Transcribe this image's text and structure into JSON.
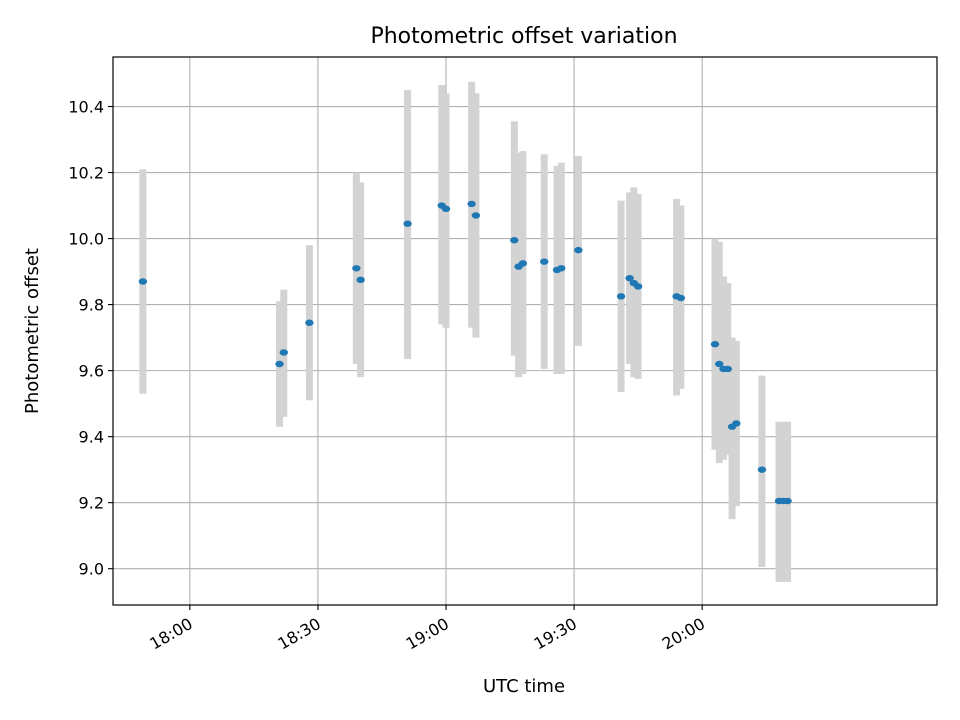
{
  "chart_data": {
    "type": "scatter",
    "title": "Photometric offset variation",
    "xlabel": "UTC time",
    "ylabel": "Photometric offset",
    "x_format": "HH:MM (UTC)",
    "xlim": [
      "17:42",
      "20:55"
    ],
    "ylim": [
      8.89,
      10.55
    ],
    "xticks": [
      "18:00",
      "18:30",
      "19:00",
      "19:30",
      "20:00"
    ],
    "yticks": [
      "9.0",
      "9.2",
      "9.4",
      "9.6",
      "9.8",
      "10.0",
      "10.2",
      "10.4"
    ],
    "grid": true,
    "legend": "none",
    "colors": {
      "points": "#1f77b4",
      "error_bars": "#d3d3d3",
      "grid": "#b0b0b0"
    },
    "series": [
      {
        "name": "",
        "points": [
          {
            "x": "17:49",
            "y": 9.87,
            "low": 9.53,
            "high": 10.21
          },
          {
            "x": "18:21",
            "y": 9.62,
            "low": 9.43,
            "high": 9.81
          },
          {
            "x": "18:22",
            "y": 9.655,
            "low": 9.46,
            "high": 9.845
          },
          {
            "x": "18:28",
            "y": 9.745,
            "low": 9.51,
            "high": 9.98
          },
          {
            "x": "18:39",
            "y": 9.91,
            "low": 9.62,
            "high": 10.2
          },
          {
            "x": "18:40",
            "y": 9.875,
            "low": 9.58,
            "high": 10.17
          },
          {
            "x": "18:51",
            "y": 10.045,
            "low": 9.635,
            "high": 10.45
          },
          {
            "x": "18:59",
            "y": 10.1,
            "low": 9.74,
            "high": 10.465
          },
          {
            "x": "19:00",
            "y": 10.09,
            "low": 9.73,
            "high": 10.44
          },
          {
            "x": "19:06",
            "y": 10.105,
            "low": 9.73,
            "high": 10.475
          },
          {
            "x": "19:07",
            "y": 10.07,
            "low": 9.7,
            "high": 10.44
          },
          {
            "x": "19:16",
            "y": 9.995,
            "low": 9.645,
            "high": 10.355
          },
          {
            "x": "19:17",
            "y": 9.915,
            "low": 9.58,
            "high": 10.26
          },
          {
            "x": "19:18",
            "y": 9.925,
            "low": 9.59,
            "high": 10.265
          },
          {
            "x": "19:23",
            "y": 9.93,
            "low": 9.605,
            "high": 10.255
          },
          {
            "x": "19:26",
            "y": 9.905,
            "low": 9.59,
            "high": 10.22
          },
          {
            "x": "19:27",
            "y": 9.91,
            "low": 9.59,
            "high": 10.23
          },
          {
            "x": "19:31",
            "y": 9.965,
            "low": 9.675,
            "high": 10.25
          },
          {
            "x": "19:41",
            "y": 9.825,
            "low": 9.535,
            "high": 10.115
          },
          {
            "x": "19:43",
            "y": 9.88,
            "low": 9.62,
            "high": 10.14
          },
          {
            "x": "19:44",
            "y": 9.865,
            "low": 9.58,
            "high": 10.155
          },
          {
            "x": "19:45",
            "y": 9.855,
            "low": 9.575,
            "high": 10.135
          },
          {
            "x": "19:54",
            "y": 9.825,
            "low": 9.525,
            "high": 10.12
          },
          {
            "x": "19:55",
            "y": 9.82,
            "low": 9.545,
            "high": 10.1
          },
          {
            "x": "20:03",
            "y": 9.68,
            "low": 9.36,
            "high": 10.0
          },
          {
            "x": "20:04",
            "y": 9.62,
            "low": 9.32,
            "high": 9.99
          },
          {
            "x": "20:05",
            "y": 9.605,
            "low": 9.33,
            "high": 9.885
          },
          {
            "x": "20:06",
            "y": 9.605,
            "low": 9.345,
            "high": 9.865
          },
          {
            "x": "20:07",
            "y": 9.43,
            "low": 9.15,
            "high": 9.7
          },
          {
            "x": "20:08",
            "y": 9.44,
            "low": 9.19,
            "high": 9.69
          },
          {
            "x": "20:14",
            "y": 9.3,
            "low": 9.005,
            "high": 9.585
          },
          {
            "x": "20:18",
            "y": 9.205,
            "low": 8.96,
            "high": 9.445
          },
          {
            "x": "20:19",
            "y": 9.205,
            "low": 8.96,
            "high": 9.445
          },
          {
            "x": "20:20",
            "y": 9.205,
            "low": 8.96,
            "high": 9.445
          }
        ]
      }
    ]
  }
}
